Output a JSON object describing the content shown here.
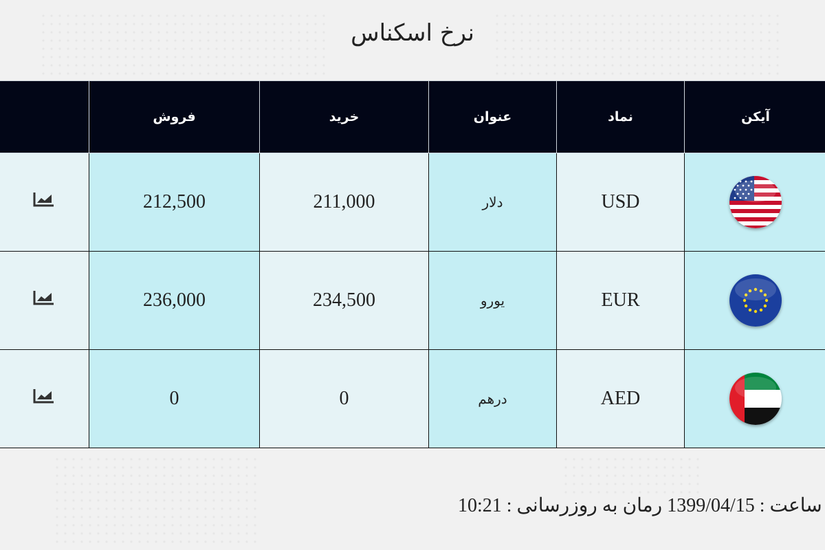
{
  "title": "نرخ اسکناس",
  "table": {
    "headers": {
      "icon": "آیکن",
      "symbol": "نماد",
      "name": "عنوان",
      "buy": "خرید",
      "sell": "فروش"
    },
    "rows": [
      {
        "icon": "us-flag-icon",
        "symbol": "USD",
        "name": "دلار",
        "buy": "211,000",
        "sell": "212,500"
      },
      {
        "icon": "eu-flag-icon",
        "symbol": "EUR",
        "name": "یورو",
        "buy": "234,500",
        "sell": "236,000"
      },
      {
        "icon": "uae-flag-icon",
        "symbol": "AED",
        "name": "درهم",
        "buy": "0",
        "sell": "0"
      }
    ]
  },
  "footer": {
    "label": "رمان به روزرسانی :",
    "date": "1399/04/15",
    "separator": "، ساعت :",
    "time": "10:21"
  },
  "colors": {
    "header_bg": "#020617",
    "row_light": "#e6f3f6",
    "row_cyan": "#c5eef4",
    "page_bg": "#f1f1f1"
  }
}
